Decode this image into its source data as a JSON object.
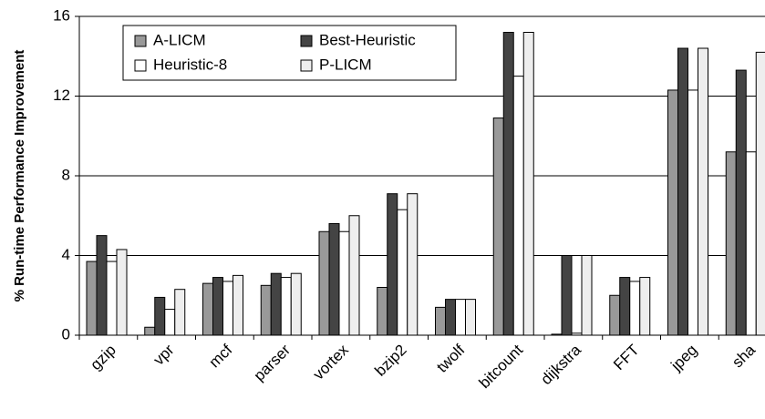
{
  "chart_data": {
    "type": "bar",
    "y_label": "% Run-time Performance Improvement",
    "categories": [
      "gzip",
      "vpr",
      "mcf",
      "parser",
      "vortex",
      "bzip2",
      "twolf",
      "bitcount",
      "dijkstra",
      "FFT",
      "jpeg",
      "sha"
    ],
    "series": [
      {
        "name": "A-LICM",
        "color": "#999999",
        "values": [
          3.7,
          0.4,
          2.6,
          2.5,
          5.2,
          2.4,
          1.4,
          10.9,
          0.05,
          2.0,
          12.3,
          9.2
        ]
      },
      {
        "name": "Best-Heuristic",
        "color": "#444444",
        "values": [
          5.0,
          1.9,
          2.9,
          3.1,
          5.6,
          7.1,
          1.8,
          15.2,
          4.0,
          2.9,
          14.4,
          13.3
        ]
      },
      {
        "name": "Heuristic-8",
        "color": "#ffffff",
        "values": [
          3.7,
          1.3,
          2.7,
          2.9,
          5.2,
          6.3,
          1.8,
          13.0,
          0.1,
          2.7,
          12.3,
          9.2
        ]
      },
      {
        "name": "P-LICM",
        "color": "#eeeeee",
        "values": [
          4.3,
          2.3,
          3.0,
          3.1,
          6.0,
          7.1,
          1.8,
          15.2,
          4.0,
          2.9,
          14.4,
          14.2
        ]
      }
    ],
    "ylim": [
      0,
      16
    ],
    "yticks": [
      0,
      4,
      8,
      12,
      16
    ],
    "grid": true
  }
}
